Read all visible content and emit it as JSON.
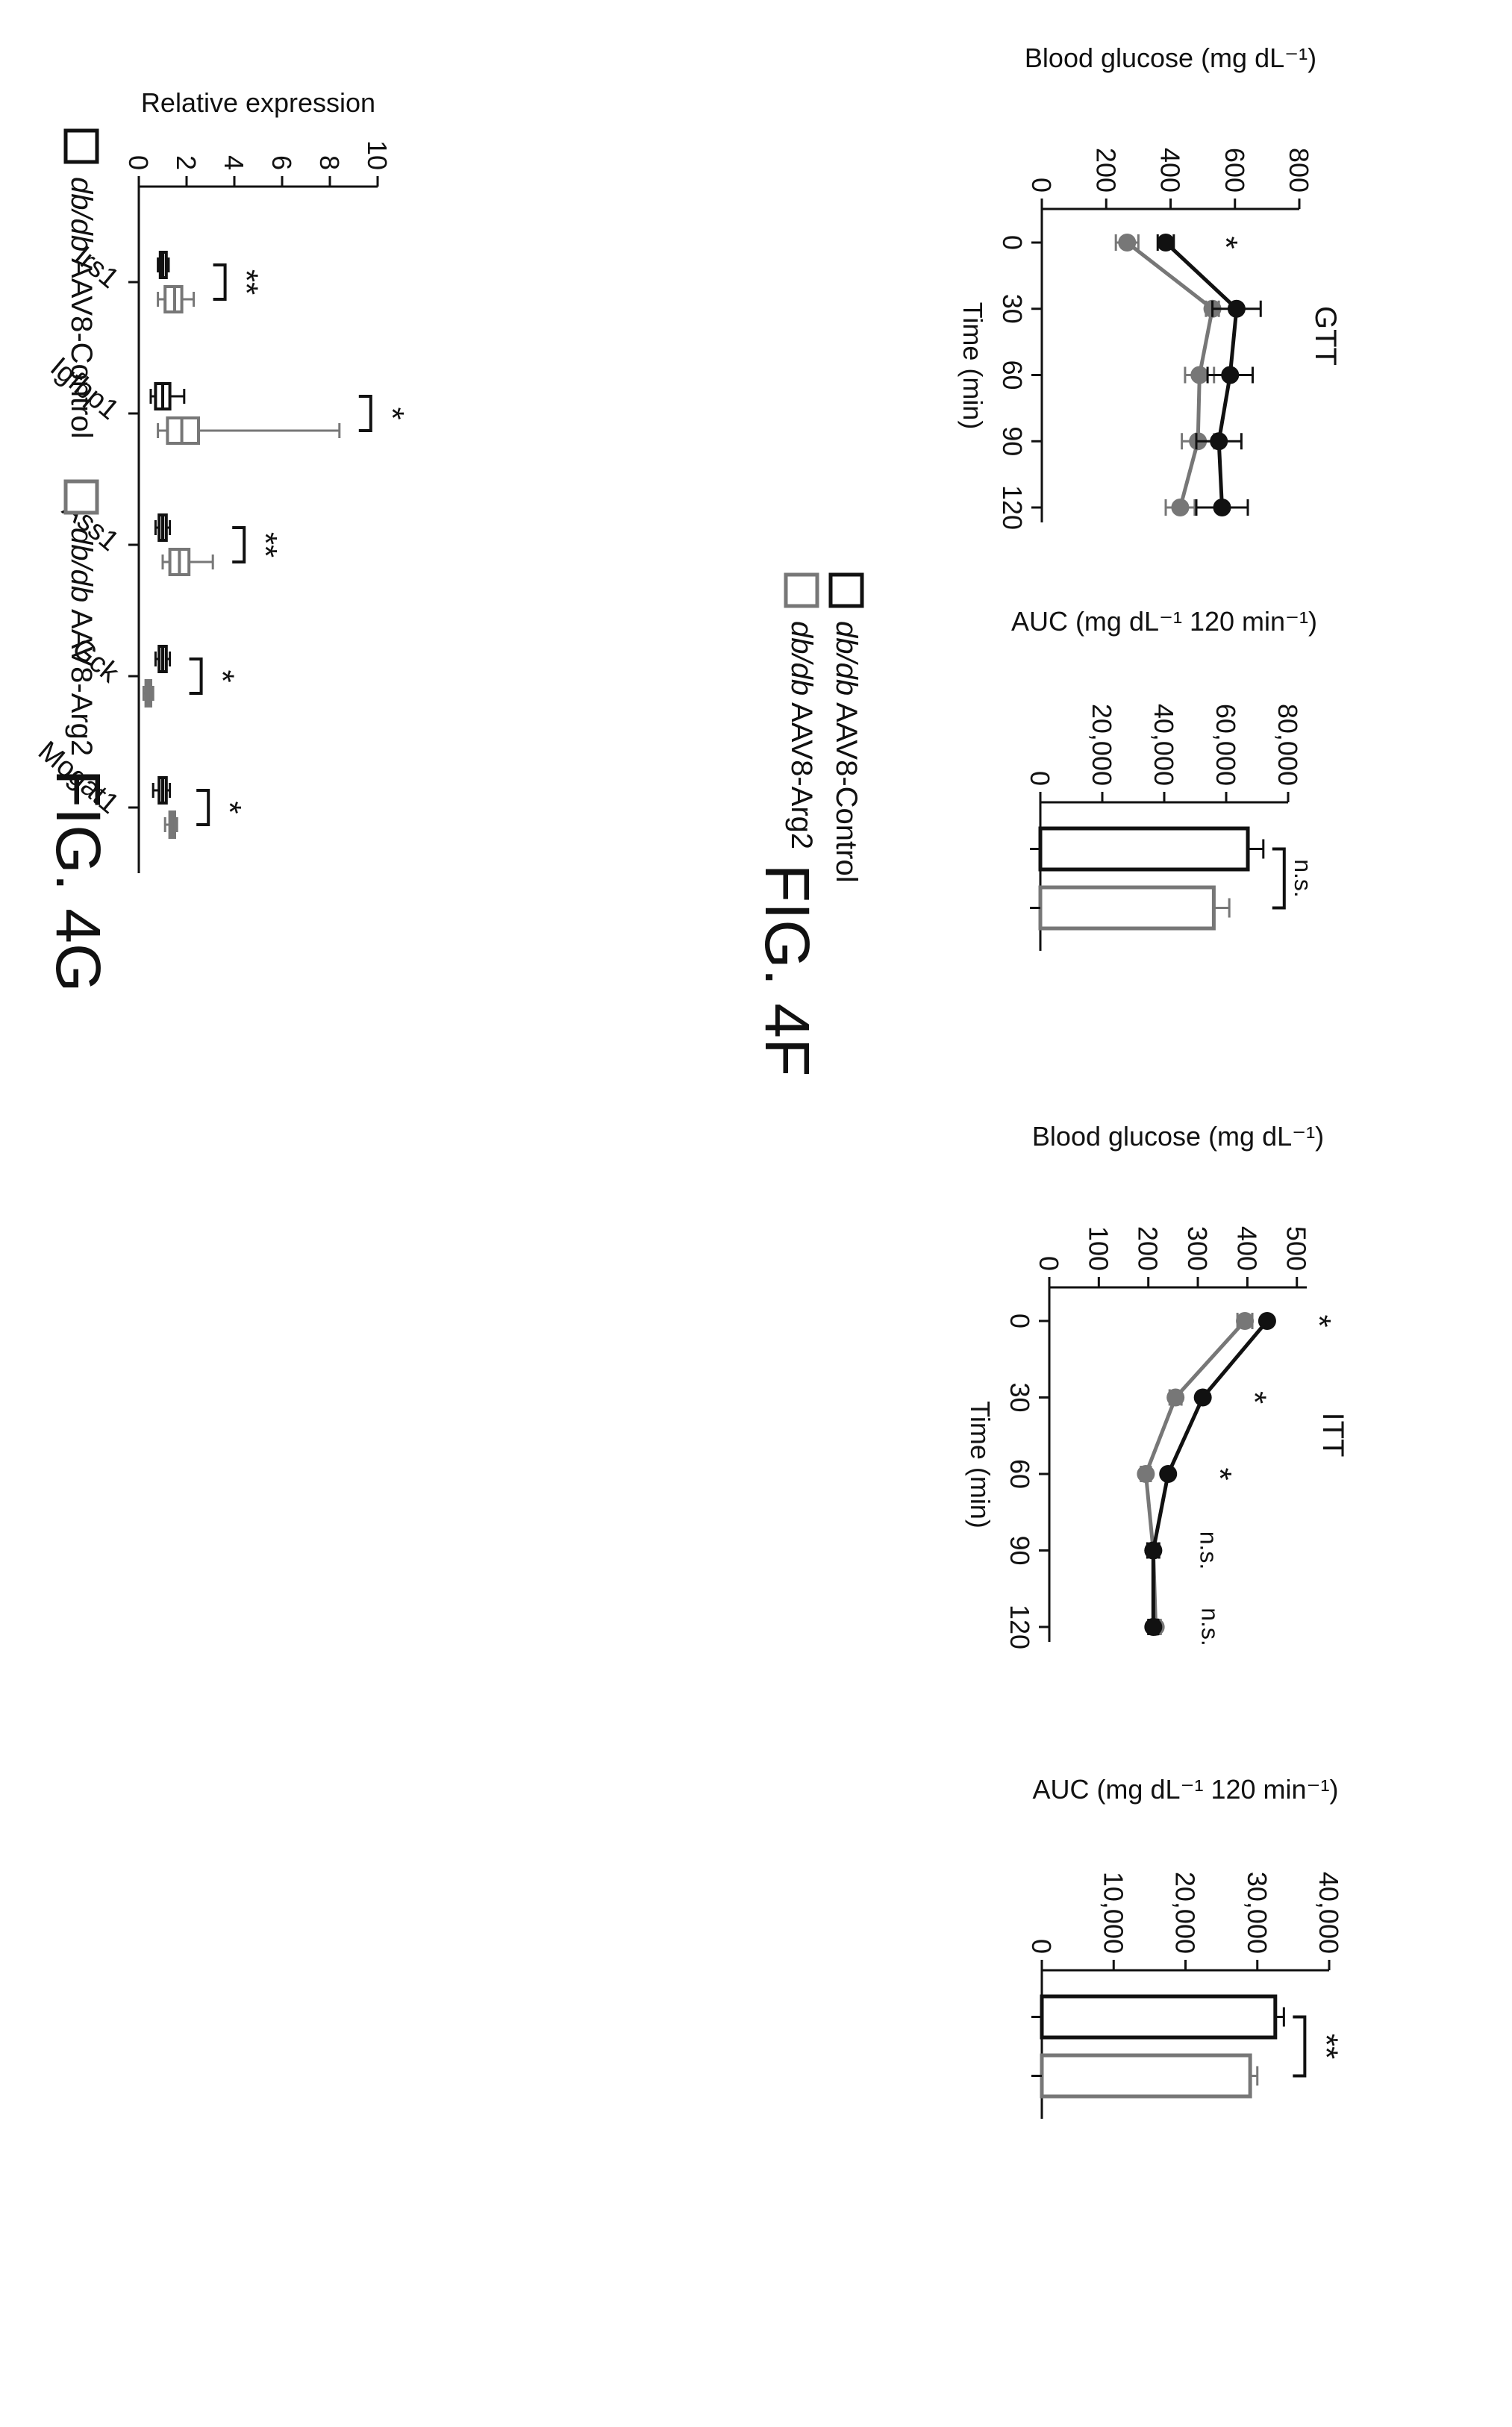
{
  "figure_labels": {
    "fig4f": "FIG. 4F",
    "fig4g": "FIG. 4G"
  },
  "colors": {
    "control": "#111111",
    "arg2": "#777777",
    "axis": "#111111"
  },
  "legend_f": [
    {
      "italic": "db/db",
      "text": " AAV8-Control",
      "style": "control"
    },
    {
      "italic": "db/db",
      "text": " AAV8-Arg2",
      "style": "arg2"
    }
  ],
  "legend_g": [
    {
      "italic": "db/db",
      "text": " AAV8-Control",
      "style": "control"
    },
    {
      "italic": "db/db",
      "text": " AAV8-Arg2",
      "style": "arg2"
    }
  ],
  "chart_data": [
    {
      "id": "gtt",
      "type": "line",
      "title": "GTT",
      "xlabel": "Time (min)",
      "ylabel": "Blood glucose (mg dL⁻¹)",
      "x": [
        0,
        30,
        60,
        90,
        120
      ],
      "xticks": [
        "0",
        "30",
        "60",
        "90",
        "120"
      ],
      "yticks": [
        "0",
        "200",
        "400",
        "600",
        "800"
      ],
      "ylim": [
        0,
        800
      ],
      "series": [
        {
          "style": "control",
          "values": [
            385,
            605,
            585,
            550,
            560
          ],
          "err": [
            25,
            75,
            70,
            70,
            80
          ]
        },
        {
          "style": "arg2",
          "values": [
            265,
            530,
            490,
            485,
            430
          ],
          "err": [
            35,
            20,
            45,
            50,
            45
          ]
        }
      ],
      "annotations": [
        {
          "x": 0,
          "text": "*"
        }
      ]
    },
    {
      "id": "gtt_auc",
      "type": "bar",
      "ylabel": "AUC (mg dL⁻¹ 120 min⁻¹)",
      "yticks": [
        "0",
        "20,000",
        "40,000",
        "60,000",
        "80,000"
      ],
      "ylim": [
        0,
        80000
      ],
      "bars": [
        {
          "style": "control",
          "value": 67000,
          "err": 5000
        },
        {
          "style": "arg2",
          "value": 56000,
          "err": 5000
        }
      ],
      "significance": "n.s."
    },
    {
      "id": "itt",
      "type": "line",
      "title": "ITT",
      "xlabel": "Time (min)",
      "ylabel": "Blood glucose (mg dL⁻¹)",
      "x": [
        0,
        30,
        60,
        90,
        120
      ],
      "xticks": [
        "0",
        "30",
        "60",
        "90",
        "120"
      ],
      "yticks": [
        "0",
        "100",
        "200",
        "300",
        "400",
        "500"
      ],
      "ylim": [
        0,
        520
      ],
      "series": [
        {
          "style": "control",
          "values": [
            440,
            310,
            240,
            210,
            210
          ],
          "err": [
            0,
            0,
            0,
            12,
            10
          ]
        },
        {
          "style": "arg2",
          "values": [
            395,
            255,
            195,
            210,
            215
          ],
          "err": [
            15,
            12,
            10,
            10,
            10
          ]
        }
      ],
      "annotations": [
        {
          "x": 0,
          "text": "*"
        },
        {
          "x": 30,
          "text": "*"
        },
        {
          "x": 60,
          "text": "*"
        },
        {
          "x": 90,
          "text": "n.s."
        },
        {
          "x": 120,
          "text": "n.s."
        }
      ]
    },
    {
      "id": "itt_auc",
      "type": "bar",
      "ylabel": "AUC (mg dL⁻¹ 120 min⁻¹)",
      "yticks": [
        "0",
        "10,000",
        "20,000",
        "30,000",
        "40,000"
      ],
      "ylim": [
        0,
        40000
      ],
      "bars": [
        {
          "style": "control",
          "value": 32500,
          "err": 1200
        },
        {
          "style": "arg2",
          "value": 29000,
          "err": 1000
        }
      ],
      "significance": "**"
    },
    {
      "id": "gene_expression",
      "type": "box",
      "ylabel": "Relative expression",
      "yticks": [
        "0",
        "2",
        "4",
        "6",
        "8",
        "10"
      ],
      "ylim": [
        0,
        10
      ],
      "categories": [
        "Irs1",
        "Igfbp1",
        "Ass1",
        "Gck",
        "Mogat1"
      ],
      "series": [
        {
          "style": "control",
          "boxes": [
            {
              "min": 0.8,
              "q1": 0.9,
              "median": 1.0,
              "q3": 1.15,
              "max": 1.25
            },
            {
              "min": 0.5,
              "q1": 0.7,
              "median": 1.0,
              "q3": 1.3,
              "max": 1.9
            },
            {
              "min": 0.7,
              "q1": 0.85,
              "median": 1.0,
              "q3": 1.15,
              "max": 1.3
            },
            {
              "min": 0.7,
              "q1": 0.85,
              "median": 1.0,
              "q3": 1.15,
              "max": 1.3
            },
            {
              "min": 0.6,
              "q1": 0.85,
              "median": 1.0,
              "q3": 1.15,
              "max": 1.3
            }
          ]
        },
        {
          "style": "arg2",
          "boxes": [
            {
              "min": 0.8,
              "q1": 1.1,
              "median": 1.5,
              "q3": 1.8,
              "max": 2.3
            },
            {
              "min": 0.8,
              "q1": 1.2,
              "median": 1.8,
              "q3": 2.5,
              "max": 8.4
            },
            {
              "min": 1.0,
              "q1": 1.3,
              "median": 1.7,
              "q3": 2.1,
              "max": 3.1
            },
            {
              "min": 0.2,
              "q1": 0.3,
              "median": 0.4,
              "q3": 0.5,
              "max": 0.6
            },
            {
              "min": 1.1,
              "q1": 1.3,
              "median": 1.4,
              "q3": 1.5,
              "max": 1.6
            }
          ]
        }
      ],
      "significance": [
        "**",
        "*",
        "**",
        "*",
        "*"
      ]
    }
  ]
}
